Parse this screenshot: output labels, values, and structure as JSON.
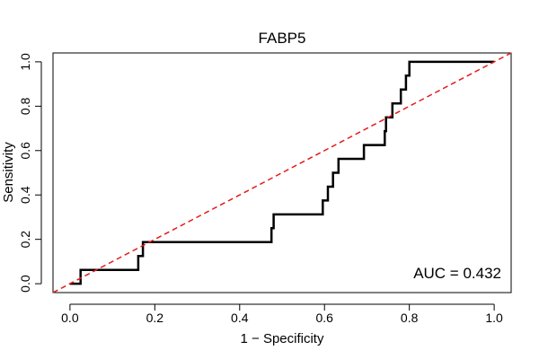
{
  "chart_data": {
    "type": "line",
    "title": "FABP5",
    "xlabel": "1 − Specificity",
    "ylabel": "Sensitivity",
    "xlim": [
      -0.04,
      1.04
    ],
    "ylim": [
      -0.04,
      1.04
    ],
    "x_ticks": [
      0.0,
      0.2,
      0.4,
      0.6,
      0.8,
      1.0
    ],
    "x_tick_labels": [
      "0.0",
      "0.2",
      "0.4",
      "0.6",
      "0.8",
      "1.0"
    ],
    "y_ticks": [
      0.0,
      0.2,
      0.4,
      0.6,
      0.8,
      1.0
    ],
    "y_tick_labels": [
      "0.0",
      "0.2",
      "0.4",
      "0.6",
      "0.8",
      "1.0"
    ],
    "grid": false,
    "annotation": "AUC = 0.432",
    "series": [
      {
        "name": "ROC curve",
        "color": "#000000",
        "style": "solid",
        "x": [
          0,
          0.025,
          0.025,
          0.161,
          0.161,
          0.172,
          0.172,
          0.475,
          0.475,
          0.48,
          0.48,
          0.596,
          0.596,
          0.608,
          0.608,
          0.62,
          0.62,
          0.633,
          0.633,
          0.647,
          0.647,
          0.693,
          0.693,
          0.742,
          0.742,
          0.745,
          0.745,
          0.76,
          0.76,
          0.763,
          0.763,
          0.78,
          0.78,
          0.792,
          0.792,
          0.8,
          0.8,
          1.0
        ],
        "y": [
          0,
          0,
          0.0625,
          0.0625,
          0.125,
          0.125,
          0.1875,
          0.1875,
          0.25,
          0.25,
          0.3125,
          0.3125,
          0.375,
          0.375,
          0.4375,
          0.4375,
          0.5,
          0.5,
          0.5625,
          0.5625,
          0.5625,
          0.5625,
          0.625,
          0.625,
          0.6875,
          0.6875,
          0.75,
          0.75,
          0.8125,
          0.8125,
          0.8125,
          0.8125,
          0.875,
          0.875,
          0.9375,
          0.9375,
          1.0,
          1.0
        ]
      },
      {
        "name": "Reference diagonal",
        "color": "#e41a1c",
        "style": "dashed",
        "x": [
          -0.04,
          1.04
        ],
        "y": [
          -0.04,
          1.04
        ]
      }
    ]
  }
}
